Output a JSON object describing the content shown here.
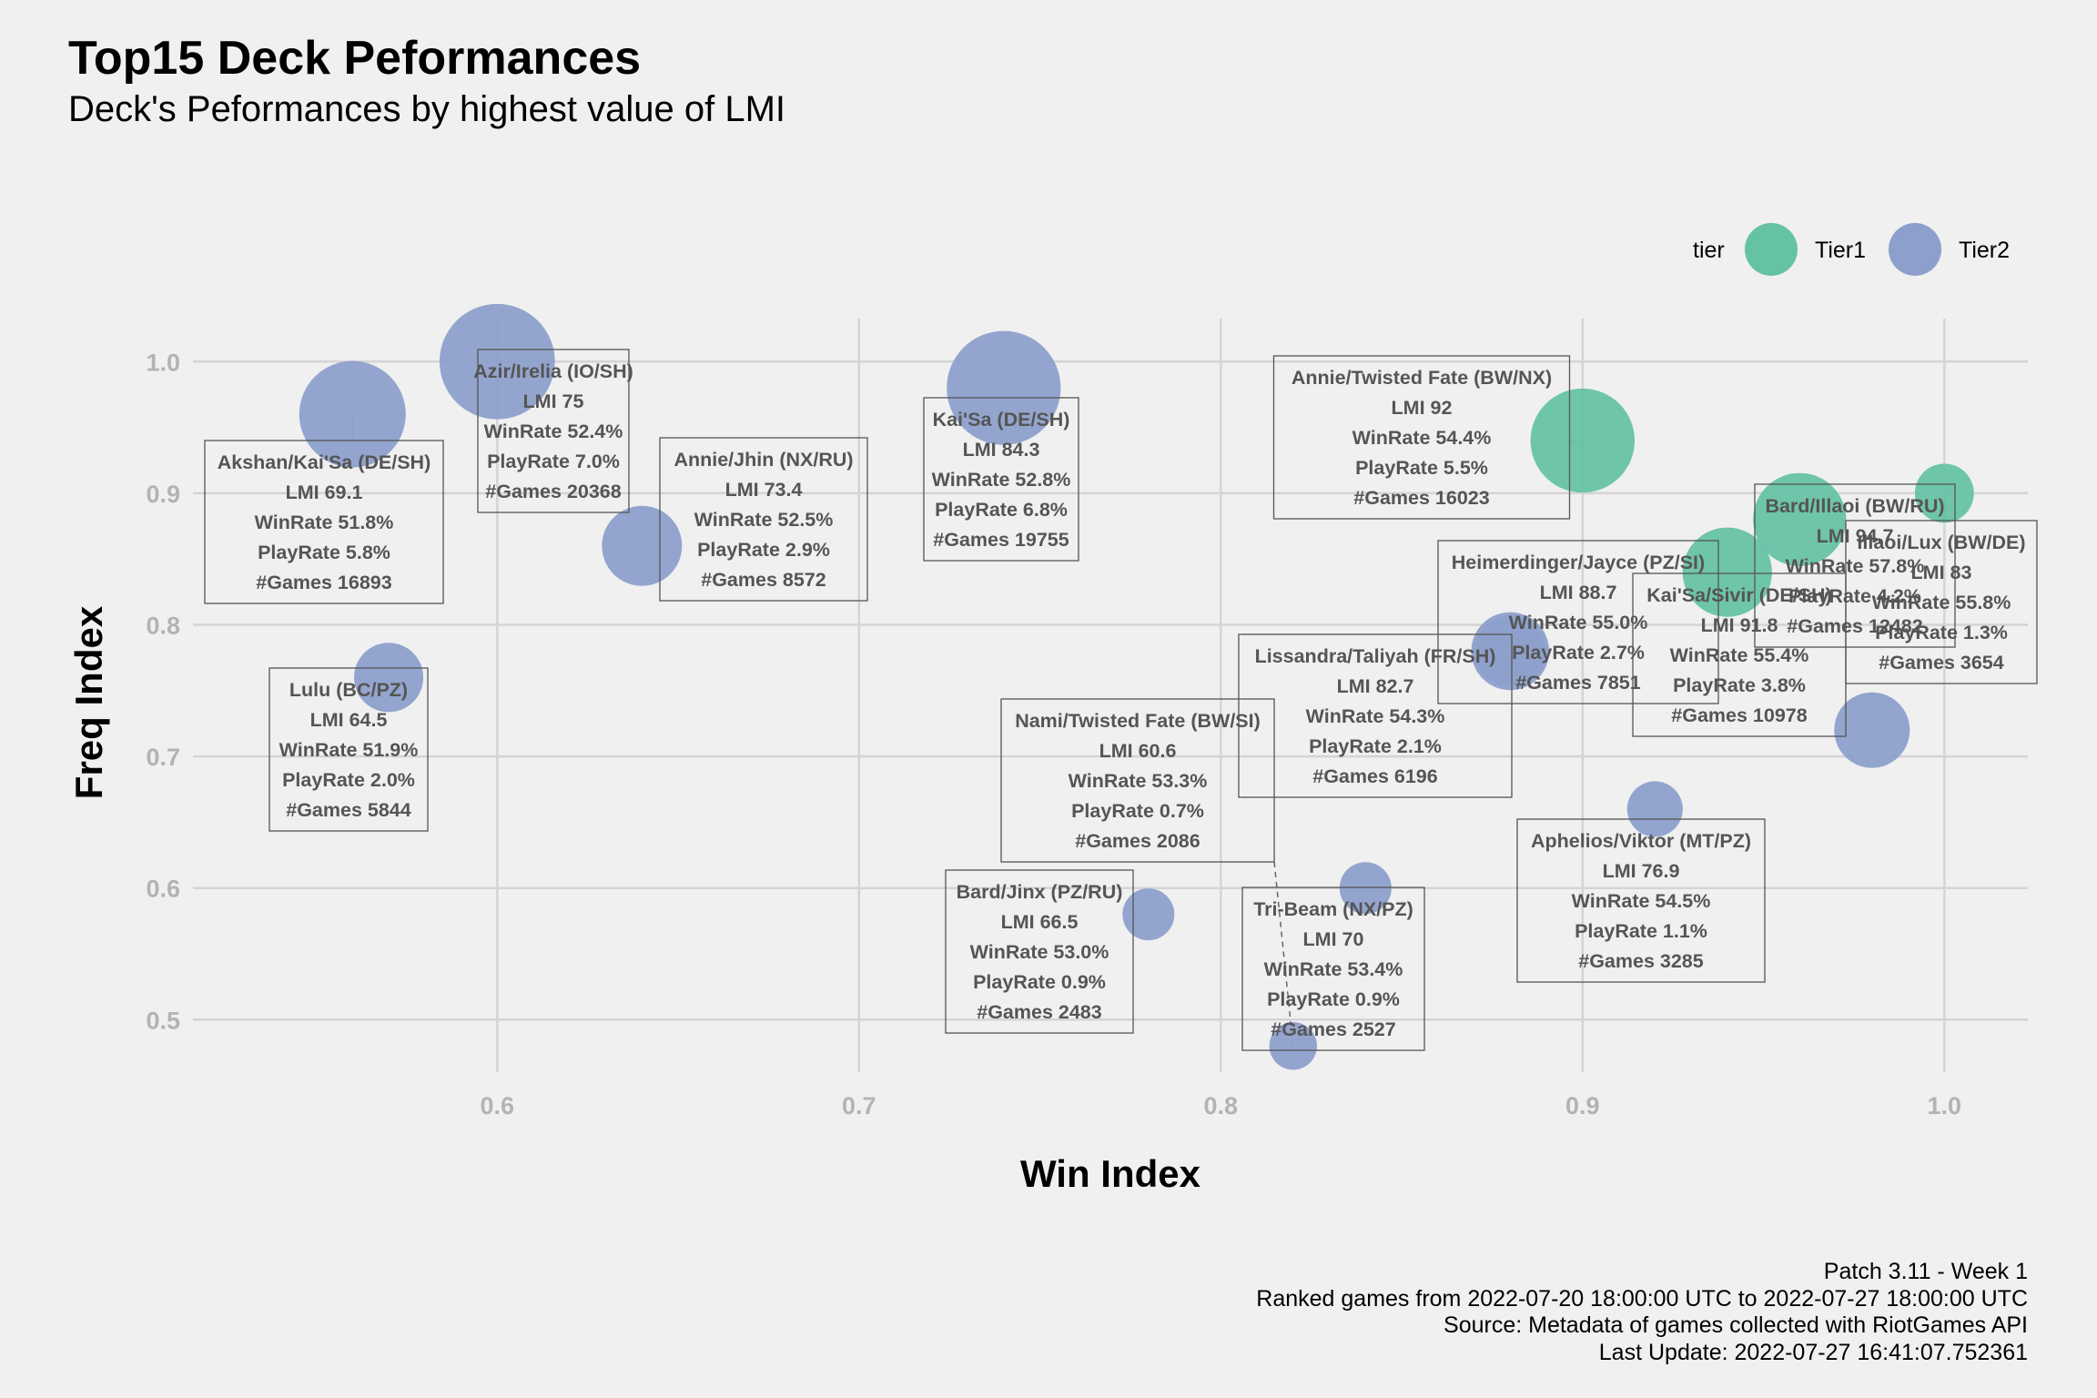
{
  "title": "Top15 Deck Peformances",
  "subtitle": "Deck's Peformances by highest value of LMI",
  "caption": [
    "Patch 3.11 - Week 1",
    "Ranked games from 2022-07-20 18:00:00 UTC to 2022-07-27 18:00:00 UTC",
    "Source: Metadata of games collected with RiotGames API",
    "Last Update: 2022-07-27 16:41:07.752361"
  ],
  "colors": {
    "Tier1": "#66c2a5",
    "Tier2": "#8da0cb",
    "background": "#f0f0f0",
    "grid": "#d4d4d4",
    "label_text": "#555555"
  },
  "legend": {
    "title": "tier",
    "items": [
      "Tier1",
      "Tier2"
    ],
    "placement": "top-right"
  },
  "chart_data": {
    "type": "scatter",
    "xlabel": "Win Index",
    "ylabel": "Freq Index",
    "xlim": [
      0.53,
      1.02
    ],
    "ylim": [
      0.45,
      1.03
    ],
    "xticks": [
      0.6,
      0.7,
      0.8,
      0.9,
      1.0
    ],
    "xtick_labels": [
      "0.6",
      "0.7",
      "0.8",
      "0.9",
      "1.0"
    ],
    "yticks": [
      0.5,
      0.6,
      0.7,
      0.8,
      0.9,
      1.0
    ],
    "ytick_labels": [
      "0.5",
      "0.6",
      "0.7",
      "0.8",
      "0.9",
      "1.0"
    ],
    "grid": true,
    "size_variable": "PlayRate",
    "points": [
      {
        "deck": "Annie/Twisted Fate (BW/NX)",
        "tier": "Tier1",
        "x": 0.9,
        "y": 0.94,
        "lmi": 92,
        "winrate": 54.4,
        "playrate": 5.5,
        "games": 16023,
        "lines": [
          "Annie/Twisted Fate (BW/NX)",
          "LMI 92",
          "WinRate 54.4%",
          "PlayRate 5.5%",
          "#Games 16023"
        ]
      },
      {
        "deck": "Illaoi/Lux (BW/DE)",
        "tier": "Tier1",
        "x": 1.0,
        "y": 0.9,
        "lmi": 83,
        "winrate": 55.8,
        "playrate": 1.3,
        "games": 3654,
        "lines": [
          "Illaoi/Lux (BW/DE)",
          "LMI 83",
          "WinRate 55.8%",
          "PlayRate 1.3%",
          "#Games 3654"
        ]
      },
      {
        "deck": "Bard/Illaoi (BW/RU)",
        "tier": "Tier1",
        "x": 0.96,
        "y": 0.88,
        "lmi": 94.7,
        "winrate": 57.8,
        "playrate": 4.2,
        "games": 12482,
        "lines": [
          "Bard/Illaoi (BW/RU)",
          "LMI 94.7",
          "WinRate 57.8%",
          "PlayRate 4.2%",
          "#Games 12482"
        ]
      },
      {
        "deck": "Kai'Sa/Sivir (DE/SH)",
        "tier": "Tier1",
        "x": 0.94,
        "y": 0.84,
        "lmi": 91.8,
        "winrate": 55.4,
        "playrate": 3.8,
        "games": 10978,
        "lines": [
          "Kai'Sa/Sivir (DE/SH)",
          "LMI 91.8",
          "WinRate 55.4%",
          "PlayRate 3.8%",
          "#Games 10978"
        ]
      },
      {
        "deck": "Azir/Irelia (IO/SH)",
        "tier": "Tier2",
        "x": 0.6,
        "y": 1.0,
        "lmi": 75,
        "winrate": 52.4,
        "playrate": 7.0,
        "games": 20368,
        "lines": [
          "Azir/Irelia (IO/SH)",
          "LMI 75",
          "WinRate 52.4%",
          "PlayRate 7.0%",
          "#Games 20368"
        ]
      },
      {
        "deck": "Kai'Sa (DE/SH)",
        "tier": "Tier2",
        "x": 0.74,
        "y": 0.98,
        "lmi": 84.3,
        "winrate": 52.8,
        "playrate": 6.8,
        "games": 19755,
        "lines": [
          "Kai'Sa (DE/SH)",
          "LMI 84.3",
          "WinRate 52.8%",
          "PlayRate 6.8%",
          "#Games 19755"
        ]
      },
      {
        "deck": "Akshan/Kai'Sa (DE/SH)",
        "tier": "Tier2",
        "x": 0.56,
        "y": 0.96,
        "lmi": 69.1,
        "winrate": 51.8,
        "playrate": 5.8,
        "games": 16893,
        "lines": [
          "Akshan/Kai'Sa (DE/SH)",
          "LMI 69.1",
          "WinRate 51.8%",
          "PlayRate 5.8%",
          "#Games 16893"
        ]
      },
      {
        "deck": "Annie/Jhin (NX/RU)",
        "tier": "Tier2",
        "x": 0.64,
        "y": 0.86,
        "lmi": 73.4,
        "winrate": 52.5,
        "playrate": 2.9,
        "games": 8572,
        "lines": [
          "Annie/Jhin (NX/RU)",
          "LMI 73.4",
          "WinRate 52.5%",
          "PlayRate 2.9%",
          "#Games 8572"
        ]
      },
      {
        "deck": "Heimerdinger/Jayce (PZ/SI)",
        "tier": "Tier2",
        "x": 0.88,
        "y": 0.78,
        "lmi": 88.7,
        "winrate": 55.0,
        "playrate": 2.7,
        "games": 7851,
        "lines": [
          "Heimerdinger/Jayce (PZ/SI)",
          "LMI 88.7",
          "WinRate 55.0%",
          "PlayRate 2.7%",
          "#Games 7851"
        ]
      },
      {
        "deck": "Lissandra/Taliyah (FR/SH)",
        "tier": "Tier2",
        "x": 0.88,
        "y": 0.78,
        "lmi": 82.7,
        "winrate": 54.3,
        "playrate": 2.1,
        "games": 6196,
        "lines": [
          "Lissandra/Taliyah (FR/SH)",
          "LMI 82.7",
          "WinRate 54.3%",
          "PlayRate 2.1%",
          "#Games 6196"
        ]
      },
      {
        "deck": "Lulu (BC/PZ)",
        "tier": "Tier2",
        "x": 0.57,
        "y": 0.76,
        "lmi": 64.5,
        "winrate": 51.9,
        "playrate": 2.0,
        "games": 5844,
        "lines": [
          "Lulu (BC/PZ)",
          "LMI 64.5",
          "WinRate 51.9%",
          "PlayRate 2.0%",
          "#Games 5844"
        ]
      },
      {
        "deck": "Aphelios/Viktor (MT/PZ)",
        "tier": "Tier2",
        "x": 0.92,
        "y": 0.66,
        "lmi": 76.9,
        "winrate": 54.5,
        "playrate": 1.1,
        "games": 3285,
        "lines": [
          "Aphelios/Viktor (MT/PZ)",
          "LMI 76.9",
          "WinRate 54.5%",
          "PlayRate 1.1%",
          "#Games 3285"
        ]
      },
      {
        "deck": "Nami/Twisted Fate (BW/SI)",
        "tier": "Tier2",
        "x": 0.82,
        "y": 0.48,
        "lmi": 60.6,
        "winrate": 53.3,
        "playrate": 0.7,
        "games": 2086,
        "lines": [
          "Nami/Twisted Fate (BW/SI)",
          "LMI 60.6",
          "WinRate 53.3%",
          "PlayRate 0.7%",
          "#Games 2086"
        ]
      },
      {
        "deck": "Tri-Beam (NX/PZ)",
        "tier": "Tier2",
        "x": 0.84,
        "y": 0.6,
        "lmi": 70,
        "winrate": 53.4,
        "playrate": 0.9,
        "games": 2527,
        "lines": [
          "Tri-Beam (NX/PZ)",
          "LMI 70",
          "WinRate 53.4%",
          "PlayRate 0.9%",
          "#Games 2527"
        ]
      },
      {
        "deck": "Bard/Jinx (PZ/RU)",
        "tier": "Tier2",
        "x": 0.78,
        "y": 0.58,
        "lmi": 66.5,
        "winrate": 53.0,
        "playrate": 0.9,
        "games": 2483,
        "lines": [
          "Bard/Jinx (PZ/RU)",
          "LMI 66.5",
          "WinRate 53.0%",
          "PlayRate 0.9%",
          "#Games 2483"
        ]
      },
      {
        "deck": "Tier2 deck (unlabeled)",
        "tier": "Tier2",
        "x": 0.98,
        "y": 0.72,
        "playrate": 2.5,
        "lines": []
      }
    ]
  }
}
